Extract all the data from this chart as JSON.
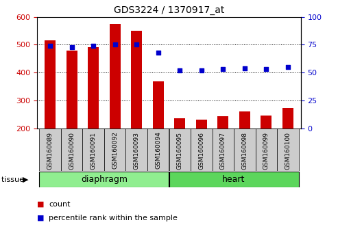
{
  "title": "GDS3224 / 1370917_at",
  "categories": [
    "GSM160089",
    "GSM160090",
    "GSM160091",
    "GSM160092",
    "GSM160093",
    "GSM160094",
    "GSM160095",
    "GSM160096",
    "GSM160097",
    "GSM160098",
    "GSM160099",
    "GSM160100"
  ],
  "counts": [
    515,
    480,
    492,
    575,
    551,
    368,
    237,
    232,
    243,
    260,
    246,
    273
  ],
  "percentiles": [
    74,
    73,
    74,
    75,
    75,
    68,
    52,
    52,
    53,
    54,
    53,
    55
  ],
  "bar_color": "#cc0000",
  "dot_color": "#0000cc",
  "ylim_left": [
    200,
    600
  ],
  "ylim_right": [
    0,
    100
  ],
  "yticks_left": [
    200,
    300,
    400,
    500,
    600
  ],
  "yticks_right": [
    0,
    25,
    50,
    75,
    100
  ],
  "groups": [
    {
      "label": "diaphragm",
      "start": 0,
      "end": 5,
      "color": "#90ee90"
    },
    {
      "label": "heart",
      "start": 6,
      "end": 11,
      "color": "#5cd65c"
    }
  ],
  "tissue_label": "tissue",
  "legend_count": "count",
  "legend_percentile": "percentile rank within the sample",
  "left_axis_color": "#cc0000",
  "right_axis_color": "#0000cc",
  "bar_width": 0.5,
  "dot_size": 25,
  "xtick_bg": "#dddddd",
  "plot_bg": "#ffffff"
}
